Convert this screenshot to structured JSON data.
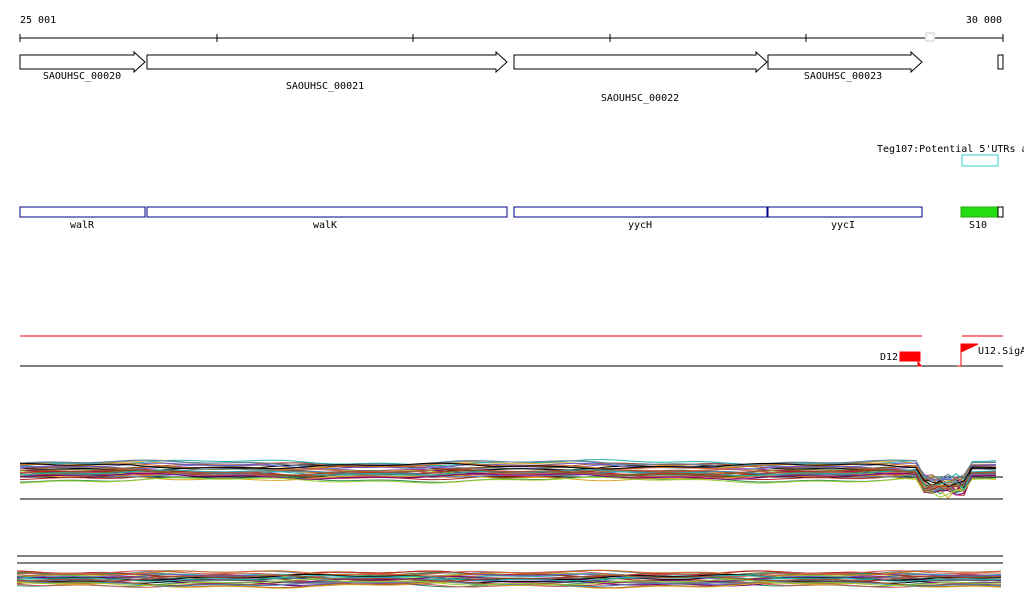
{
  "ruler": {
    "start_label": "25 001",
    "end_label": "30 000"
  },
  "genes": [
    {
      "label": "SAOUHSC_00020"
    },
    {
      "label": "SAOUHSC_00021"
    },
    {
      "label": "SAOUHSC_00022"
    },
    {
      "label": "SAOUHSC_00023"
    }
  ],
  "utr_track": {
    "label": "Teg107:Potential 5'UTRs a"
  },
  "gene_names": [
    {
      "label": "walR"
    },
    {
      "label": "walK"
    },
    {
      "label": "yycH"
    },
    {
      "label": "yycI"
    },
    {
      "label": "S10"
    }
  ],
  "promoters": [
    {
      "label": "D12"
    },
    {
      "label": "U12.SigA"
    }
  ]
}
